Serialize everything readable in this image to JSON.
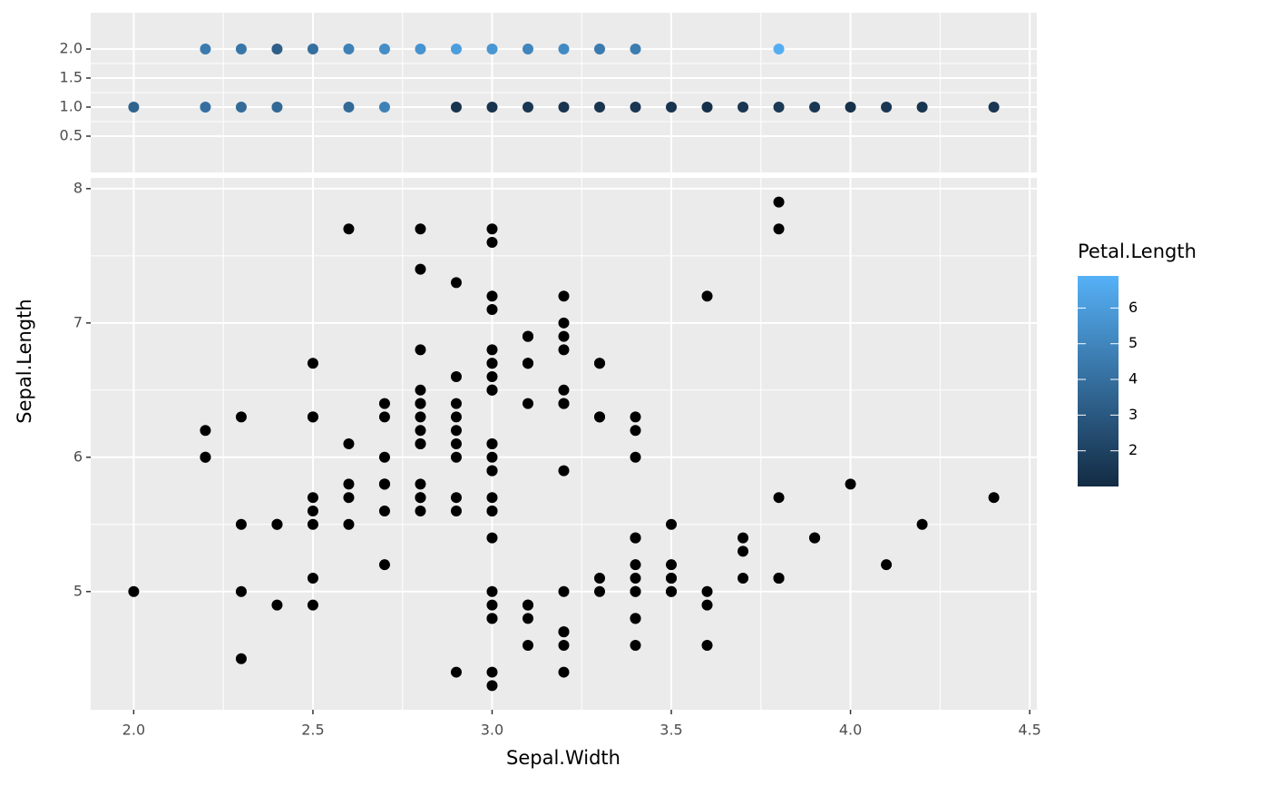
{
  "chart_data": [
    {
      "type": "scatter",
      "x": [
        2.2,
        2.3,
        2.4,
        2.5,
        2.6,
        2.7,
        2.8,
        2.9,
        3.0,
        3.1,
        3.2,
        3.3,
        3.4,
        3.8,
        2.0,
        2.2,
        2.3,
        2.4,
        2.6,
        2.7,
        2.9,
        3.0,
        3.1,
        3.2,
        3.3,
        3.4,
        3.5,
        3.6,
        3.7,
        3.8,
        3.9,
        4.0,
        4.1,
        4.2,
        4.4
      ],
      "y": [
        2,
        2,
        2,
        2,
        2,
        2,
        2,
        2,
        2,
        2,
        2,
        2,
        2,
        2,
        1,
        1,
        1,
        1,
        1,
        1,
        1,
        1,
        1,
        1,
        1,
        1,
        1,
        1,
        1,
        1,
        1,
        1,
        1,
        1,
        1
      ],
      "color_values": [
        4.5,
        4.3,
        3.3,
        4.0,
        4.8,
        5.3,
        5.6,
        6.0,
        5.7,
        5.0,
        5.2,
        4.5,
        4.6,
        6.7,
        3.5,
        4.0,
        3.8,
        3.7,
        3.8,
        4.8,
        1.4,
        1.4,
        1.5,
        1.4,
        1.4,
        1.5,
        1.4,
        1.2,
        1.5,
        1.6,
        1.5,
        1.2,
        1.5,
        1.4,
        1.5
      ],
      "ylim": [
        -0.125,
        2.625
      ],
      "yticks": [
        0.5,
        {
          "value": 1,
          "label": "1.0"
        },
        1.5,
        {
          "value": 2,
          "label": "2.0"
        }
      ],
      "grid": true,
      "color_scale": {
        "title": "Petal.Length",
        "range": [
          1,
          6.9
        ],
        "ticks": [
          2,
          3,
          4,
          5,
          6
        ],
        "colors": [
          "#132B43",
          "#56B1F7"
        ]
      }
    },
    {
      "type": "scatter",
      "xlabel": "Sepal.Width",
      "ylabel": "Sepal.Length",
      "color": "#000000",
      "x": [
        3.5,
        3.0,
        3.2,
        3.1,
        3.6,
        3.9,
        3.4,
        3.4,
        2.9,
        3.1,
        3.7,
        3.4,
        3.0,
        3.0,
        4.0,
        4.4,
        3.9,
        3.5,
        3.8,
        3.8,
        3.4,
        3.7,
        3.6,
        3.3,
        3.4,
        3.0,
        3.4,
        3.5,
        3.4,
        3.2,
        3.1,
        3.4,
        4.1,
        4.2,
        3.1,
        3.2,
        3.5,
        3.6,
        3.0,
        3.4,
        3.5,
        2.3,
        3.2,
        3.5,
        3.8,
        3.0,
        3.8,
        3.2,
        3.7,
        3.3,
        3.2,
        3.2,
        3.1,
        2.3,
        2.8,
        2.8,
        3.3,
        2.4,
        2.9,
        2.7,
        2.0,
        3.0,
        2.2,
        2.9,
        2.9,
        3.1,
        3.0,
        2.7,
        2.2,
        2.5,
        3.2,
        2.8,
        2.5,
        2.8,
        2.9,
        3.0,
        2.8,
        3.0,
        2.9,
        2.6,
        2.4,
        2.4,
        2.7,
        2.7,
        3.0,
        3.4,
        3.1,
        2.3,
        3.0,
        2.5,
        2.6,
        3.0,
        2.6,
        2.3,
        2.7,
        3.0,
        2.9,
        2.9,
        2.5,
        2.8,
        3.3,
        2.7,
        3.0,
        2.9,
        3.0,
        3.0,
        2.5,
        2.9,
        2.5,
        3.6,
        3.2,
        2.7,
        3.0,
        2.5,
        2.8,
        3.2,
        3.0,
        3.8,
        2.6,
        2.2,
        3.2,
        2.8,
        2.8,
        2.7,
        3.3,
        3.2,
        2.8,
        3.0,
        2.8,
        3.0,
        2.8,
        3.8,
        2.8,
        2.8,
        2.6,
        3.0,
        3.4,
        3.1,
        3.0,
        3.1,
        3.1,
        3.1,
        2.7,
        3.2,
        3.3,
        3.0,
        2.5,
        3.0,
        3.4,
        3.0
      ],
      "y": [
        5.1,
        4.9,
        4.7,
        4.6,
        5.0,
        5.4,
        4.6,
        5.0,
        4.4,
        4.9,
        5.4,
        4.8,
        4.8,
        4.3,
        5.8,
        5.7,
        5.4,
        5.1,
        5.7,
        5.1,
        5.4,
        5.1,
        4.6,
        5.1,
        4.8,
        5.0,
        5.0,
        5.2,
        5.2,
        4.7,
        4.8,
        5.4,
        5.2,
        5.5,
        4.9,
        5.0,
        5.5,
        4.9,
        4.4,
        5.1,
        5.0,
        4.5,
        4.4,
        5.0,
        5.1,
        4.8,
        5.1,
        4.6,
        5.3,
        5.0,
        7.0,
        6.4,
        6.9,
        5.5,
        6.5,
        5.7,
        6.3,
        4.9,
        6.6,
        5.2,
        5.0,
        5.9,
        6.0,
        6.1,
        5.6,
        6.7,
        5.6,
        5.8,
        6.2,
        5.6,
        5.9,
        6.1,
        6.3,
        6.1,
        6.4,
        6.6,
        6.8,
        6.7,
        6.0,
        5.7,
        5.5,
        5.5,
        5.8,
        6.0,
        5.4,
        6.0,
        6.7,
        6.3,
        5.6,
        5.5,
        5.5,
        6.1,
        5.8,
        5.0,
        5.6,
        5.7,
        5.7,
        6.2,
        5.1,
        5.7,
        6.3,
        5.8,
        7.1,
        6.3,
        6.5,
        7.6,
        4.9,
        7.3,
        6.7,
        7.2,
        6.5,
        6.4,
        6.8,
        5.7,
        5.8,
        6.4,
        6.5,
        7.7,
        7.7,
        6.0,
        6.9,
        5.6,
        7.7,
        6.3,
        6.7,
        7.2,
        6.2,
        6.1,
        6.4,
        7.2,
        7.4,
        7.9,
        6.4,
        6.3,
        6.1,
        7.7,
        6.3,
        6.4,
        6.0,
        6.9,
        6.7,
        6.9,
        5.8,
        6.8,
        6.7,
        6.7,
        6.3,
        6.5,
        6.2,
        5.9
      ],
      "xlim": [
        1.88,
        4.52
      ],
      "xticks": [
        {
          "value": 2,
          "label": "2.0"
        },
        2.5,
        {
          "value": 3,
          "label": "3.0"
        },
        3.5,
        {
          "value": 4,
          "label": "4.0"
        },
        4.5
      ],
      "ylim": [
        4.12,
        8.08
      ],
      "yticks": [
        5,
        6,
        7,
        8
      ],
      "grid": true
    }
  ]
}
